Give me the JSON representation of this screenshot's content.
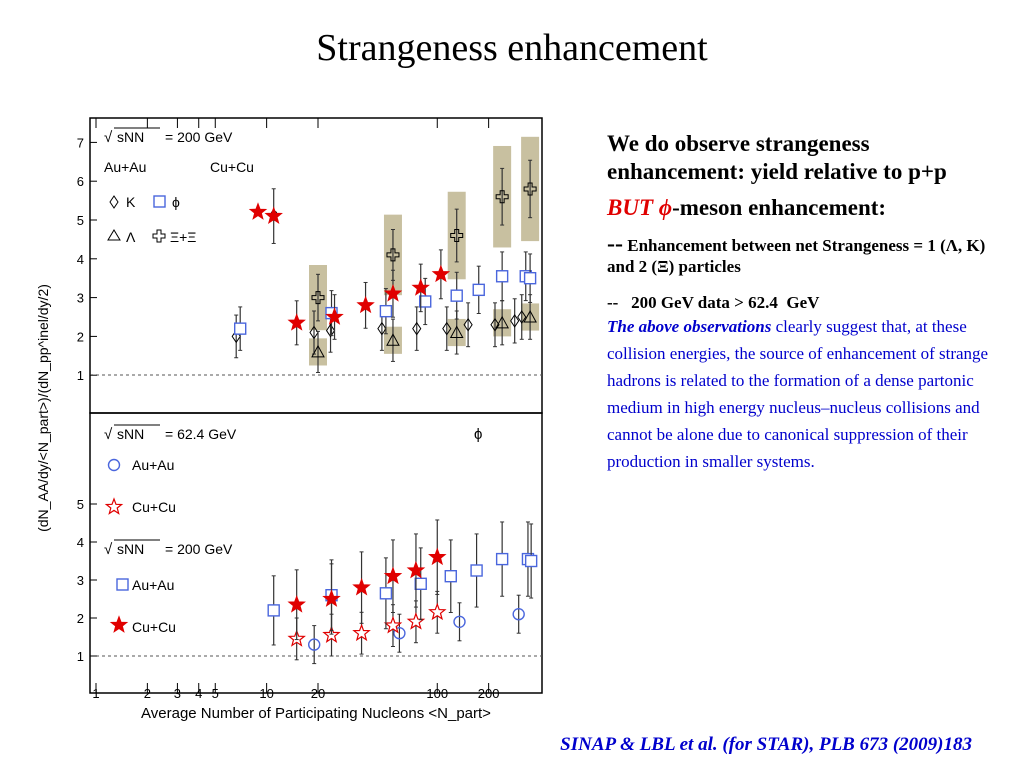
{
  "title": "Strangeness enhancement",
  "notes": {
    "p1": "We do observe strangeness enhancement: yield relative to p+p",
    "p2_red": "BUT",
    "p2_phi": "ϕ",
    "p2_rest": "-meson enhancement:",
    "p3_dash": "--",
    "p3_text": "Enhancement between net Strangeness = 1 (Λ, Κ) and 2 (Ξ) particles",
    "p4": "--   200 GeV data > 62.4  GeV",
    "p5_italic": "The above observations",
    "p5_text": "clearly suggest that, at these collision energies, the source of enhancement of strange hadrons is related to the formation of a dense partonic medium in high energy nucleus–nucleus collisions and cannot be alone due to canonical suppression of their production in smaller systems."
  },
  "citation": "SINAP & LBL et al. (for STAR), PLB 673 (2009)183",
  "colors": {
    "red": "#e00000",
    "blue": "#4a66dd",
    "band": "#c8c0a0",
    "link": "#0000cc"
  },
  "figure": {
    "y_axis_label": "(dN_AA/dy/<N_part>)/(dN_pp^inel/dy/2)",
    "x_axis_label": "Average Number of Participating Nucleons <N_part>",
    "x_ticks": [
      "1",
      "2",
      "3",
      "4",
      "5",
      "10",
      "20",
      "100",
      "200"
    ],
    "top": {
      "energy": "= 200 GeV",
      "sqrt_label": "sNN",
      "system_aa": "Au+Au",
      "system_cucu": "Cu+Cu",
      "legend": [
        {
          "label": "K",
          "marker": "diamond-icon"
        },
        {
          "label": "ϕ",
          "marker": "open-square-icon"
        },
        {
          "label": "Λ",
          "marker": "open-triangle-icon"
        },
        {
          "label": "Ξ+Ξ",
          "marker": "open-cross-icon"
        },
        {
          "label": "ϕ",
          "marker": "red-star-icon"
        }
      ],
      "y_ticks": [
        "1",
        "2",
        "3",
        "4",
        "5",
        "6",
        "7"
      ]
    },
    "bottom": {
      "energy_62": "= 62.4 GeV",
      "energy_200": "= 200 GeV",
      "sqrt_label": "sNN",
      "phi_label": "ϕ",
      "legend": [
        {
          "label": "Au+Au",
          "marker": "open-circle-icon"
        },
        {
          "label": "Cu+Cu",
          "marker": "open-star-icon"
        },
        {
          "label": "Au+Au",
          "marker": "open-square-icon"
        },
        {
          "label": "Cu+Cu",
          "marker": "red-star-icon"
        }
      ],
      "y_ticks": [
        "1",
        "2",
        "3",
        "4",
        "5"
      ]
    }
  },
  "chart_data": [
    {
      "type": "scatter",
      "title": "",
      "xlabel": "Average Number of Participating Nucleons <N_part>",
      "ylabel": "(dN_AA/dy/<N_part>)/(dN_pp^inel/dy/2)",
      "x_scale": "log",
      "xlim": [
        1,
        400
      ],
      "ylim": [
        0.5,
        7.5
      ],
      "series": [
        {
          "name": "K",
          "marker": "diamond",
          "x": [
            7,
            20,
            25,
            50,
            80,
            120,
            160,
            230,
            300,
            330
          ],
          "y": [
            2.0,
            2.1,
            2.15,
            2.2,
            2.2,
            2.2,
            2.3,
            2.3,
            2.4,
            2.5
          ]
        },
        {
          "name": "ϕ",
          "marker": "open-square",
          "x": [
            7,
            24,
            50,
            85,
            130,
            175,
            240,
            330,
            350
          ],
          "y": [
            2.2,
            2.6,
            2.65,
            2.9,
            3.05,
            3.2,
            3.55,
            3.55,
            3.5
          ]
        },
        {
          "name": "Λ",
          "marker": "open-triangle",
          "x": [
            20,
            55,
            130,
            240,
            350
          ],
          "y": [
            1.6,
            1.9,
            2.1,
            2.35,
            2.5
          ]
        },
        {
          "name": "Ξ+Ξ",
          "marker": "open-cross",
          "x": [
            20,
            55,
            130,
            240,
            350
          ],
          "y": [
            3.0,
            4.1,
            4.6,
            5.6,
            5.8
          ]
        },
        {
          "name": "ϕ",
          "marker": "red-star",
          "x": [
            11,
            15,
            25,
            38,
            55,
            80,
            105
          ],
          "y": [
            5.1,
            2.35,
            2.5,
            2.8,
            3.1,
            3.25,
            3.6
          ]
        }
      ]
    },
    {
      "type": "scatter",
      "title": "",
      "xlabel": "Average Number of Participating Nucleons <N_part>",
      "ylabel": "(dN_AA/dy/<N_part>)/(dN_pp^inel/dy/2)",
      "x_scale": "log",
      "xlim": [
        1,
        400
      ],
      "ylim": [
        0.5,
        5.5
      ],
      "series": [
        {
          "name": "Au+Au",
          "marker": "open-circle",
          "x": [
            19,
            60,
            135,
            300
          ],
          "y": [
            1.3,
            1.6,
            1.9,
            2.1
          ]
        },
        {
          "name": "Cu+Cu",
          "marker": "open-star",
          "x": [
            15,
            24,
            36,
            55,
            75,
            100
          ],
          "y": [
            1.45,
            1.55,
            1.6,
            1.8,
            1.9,
            2.15
          ]
        },
        {
          "name": "Au+Au",
          "marker": "open-square",
          "x": [
            11,
            24,
            50,
            80,
            120,
            170,
            240,
            340,
            355
          ],
          "y": [
            2.2,
            2.6,
            2.65,
            2.9,
            3.1,
            3.25,
            3.55,
            3.55,
            3.5
          ]
        },
        {
          "name": "Cu+Cu",
          "marker": "red-star",
          "x": [
            15,
            24,
            36,
            55,
            75,
            100
          ],
          "y": [
            2.35,
            2.5,
            2.8,
            3.1,
            3.25,
            3.6
          ]
        }
      ]
    }
  ]
}
